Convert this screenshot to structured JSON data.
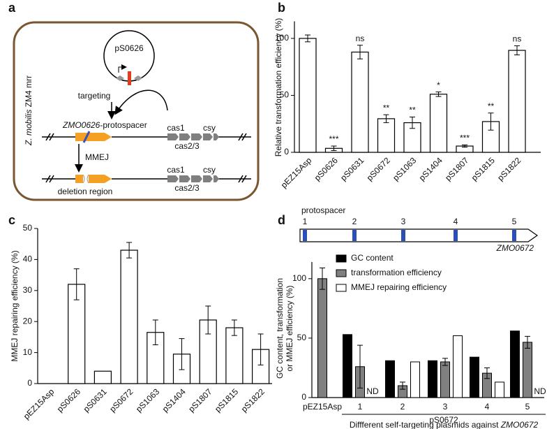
{
  "diagram": {
    "panel": "a",
    "title_italic": "Z. mobilis",
    "title_rest": " ZM4 mrr",
    "plasmid": "pS0626",
    "targeting": "targeting",
    "protospacer_italic": "ZMO0626",
    "protospacer_rest": "-protospacer",
    "repair": "MMEJ",
    "deletion": "deletion region",
    "genes": [
      "cas1",
      "cas2/3",
      "csy"
    ]
  },
  "chart_data": [
    {
      "panel": "b",
      "type": "bar",
      "ylabel": "Relative transformation efficiency (%)",
      "categories": [
        "pEZ15Asp",
        "pS0626",
        "pS0631",
        "pS0672",
        "pS1063",
        "pS1404",
        "pS1807",
        "pS1815",
        "pS1822"
      ],
      "values": [
        100,
        3.5,
        88,
        29.5,
        26,
        51,
        5.5,
        27,
        89.5
      ],
      "errors": [
        3,
        2,
        6,
        3.5,
        5,
        2,
        1,
        7.5,
        4
      ],
      "annotations": [
        null,
        "***",
        "ns",
        "**",
        "**",
        "*",
        "***",
        "**",
        "ns"
      ],
      "color": "#ffffff",
      "ylim": [
        0,
        115
      ],
      "yticks": [
        0,
        50,
        100
      ]
    },
    {
      "panel": "c",
      "type": "bar",
      "ylabel": "MMEJ repairing efficiency  (%)",
      "categories": [
        "pEZ15Asp",
        "pS0626",
        "pS0631",
        "pS0672",
        "pS1063",
        "pS1404",
        "pS1807",
        "pS1815",
        "pS1822"
      ],
      "values": [
        0,
        32,
        4,
        43,
        16.5,
        9.5,
        20.5,
        18,
        11
      ],
      "errors": [
        null,
        5,
        null,
        2.5,
        4,
        5,
        4.5,
        2.5,
        5
      ],
      "color": "#ffffff",
      "ylim": [
        0,
        50
      ],
      "yticks": [
        0,
        10,
        20,
        30,
        40,
        50
      ]
    },
    {
      "panel": "d",
      "type": "grouped_bar",
      "ylabel": [
        "GC content, transformation",
        "or MMEJ efficiency (%)"
      ],
      "categories": [
        "pEZ15Asp",
        "1",
        "2",
        "3",
        "4",
        "5"
      ],
      "group_label": "pS0672",
      "xlabel": [
        "Diffferent self-targeting plasmids against ",
        "ZMO0672"
      ],
      "series": [
        {
          "name": "GC content",
          "color": "#000000",
          "values": [
            null,
            53,
            31,
            31,
            34,
            56
          ]
        },
        {
          "name": "transformation efficiency",
          "color": "#808080",
          "values": [
            100,
            26,
            10,
            30,
            20.5,
            46.5
          ],
          "errors": [
            9,
            18,
            3,
            3,
            4.5,
            5
          ]
        },
        {
          "name": "MMEJ repairing efficiency",
          "color": "#ffffff",
          "values": [
            null,
            null,
            30,
            52,
            13,
            null
          ],
          "annotations": [
            null,
            "ND",
            null,
            null,
            null,
            "ND"
          ]
        }
      ],
      "ylim": [
        0,
        114
      ],
      "yticks": [
        0,
        50,
        100
      ],
      "schematic": {
        "label": "protospacer",
        "numbers": [
          "1",
          "2",
          "3",
          "4",
          "5"
        ],
        "gene": "ZMO0672"
      }
    }
  ]
}
